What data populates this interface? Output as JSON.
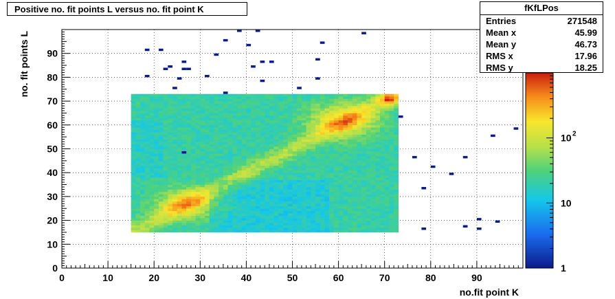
{
  "chart_data": {
    "type": "heatmap",
    "title": "Positive no. fit points L versus no. fit point K",
    "xlabel": "no.fit point K",
    "ylabel": "no. fit points  L",
    "xlim": [
      0,
      100
    ],
    "ylim": [
      0,
      100
    ],
    "x_ticks": [
      "0",
      "10",
      "20",
      "30",
      "40",
      "50",
      "60",
      "70",
      "80",
      "90"
    ],
    "y_ticks": [
      "0",
      "10",
      "20",
      "30",
      "40",
      "50",
      "60",
      "70",
      "80",
      "90"
    ],
    "z_scale": "log",
    "z_range": [
      1,
      1000
    ],
    "z_ticks": [
      "1",
      "10",
      "10"
    ],
    "z_tick_exp": "2",
    "grid": true,
    "dense_region": {
      "x": [
        15,
        73
      ],
      "y": [
        15,
        73
      ]
    },
    "hot_spots": [
      {
        "x": 27,
        "y": 27,
        "level": "max"
      },
      {
        "x": 62,
        "y": 62,
        "level": "max"
      },
      {
        "x": 71,
        "y": 71,
        "level": "max"
      }
    ],
    "sparse_points": [
      [
        18,
        91
      ],
      [
        21,
        91
      ],
      [
        18,
        80
      ],
      [
        22,
        83
      ],
      [
        23,
        84
      ],
      [
        24,
        75
      ],
      [
        25,
        79
      ],
      [
        26,
        86
      ],
      [
        26,
        83
      ],
      [
        27,
        83
      ],
      [
        31,
        80
      ],
      [
        33,
        89
      ],
      [
        35,
        95
      ],
      [
        35,
        73
      ],
      [
        38,
        99
      ],
      [
        40,
        93
      ],
      [
        41,
        84
      ],
      [
        42,
        99
      ],
      [
        43,
        86
      ],
      [
        43,
        78
      ],
      [
        45,
        86
      ],
      [
        51,
        75
      ],
      [
        55,
        87
      ],
      [
        55,
        79
      ],
      [
        56,
        94
      ],
      [
        65,
        98
      ],
      [
        73,
        63
      ],
      [
        76,
        46
      ],
      [
        78,
        33
      ],
      [
        78,
        16
      ],
      [
        80,
        42
      ],
      [
        84,
        39
      ],
      [
        87,
        46
      ],
      [
        87,
        17
      ],
      [
        90,
        20
      ],
      [
        90,
        16
      ],
      [
        93,
        55
      ],
      [
        94,
        19
      ],
      [
        98,
        58
      ],
      [
        26,
        48
      ]
    ]
  },
  "stats": {
    "name": "fKfLPos",
    "rows": [
      {
        "k": "Entries",
        "v": "271548"
      },
      {
        "k": "Mean x",
        "v": "45.99"
      },
      {
        "k": "Mean y",
        "v": "46.73"
      },
      {
        "k": "RMS x",
        "v": "17.96"
      },
      {
        "k": "RMS y",
        "v": "18.25"
      }
    ]
  }
}
